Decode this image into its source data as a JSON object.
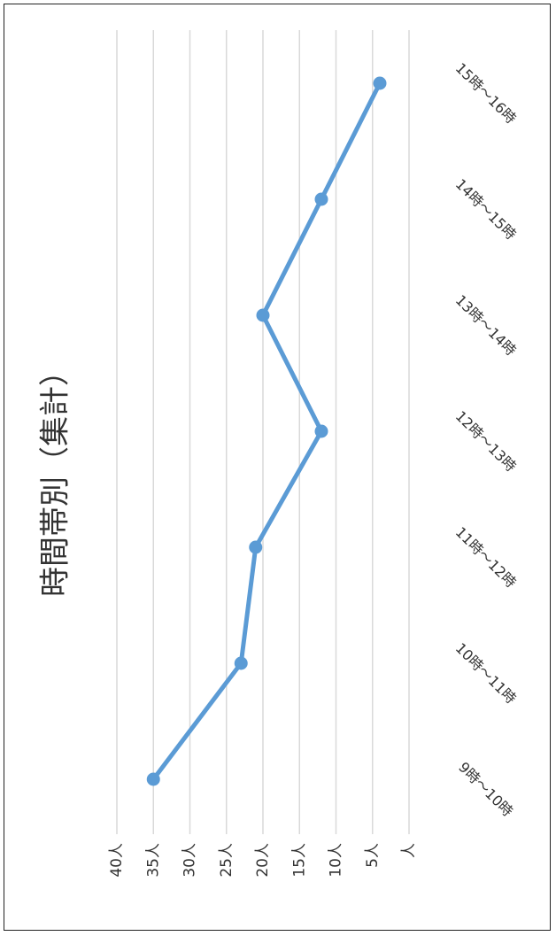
{
  "chart_data": {
    "type": "line",
    "title": "時間帯別（集計）",
    "categories": [
      "9時～10時",
      "10時～11時",
      "11時～12時",
      "12時～13時",
      "13時～14時",
      "14時～15時",
      "15時～16時"
    ],
    "series": [
      {
        "values": [
          35,
          23,
          21,
          12,
          20,
          12,
          4
        ]
      }
    ],
    "y_ticks": [
      "人",
      "5人",
      "10人",
      "15人",
      "20人",
      "25人",
      "30人",
      "35人",
      "40人"
    ],
    "ylim": [
      0,
      40
    ],
    "grid": true,
    "legend": "none",
    "orientation": "rotated-90",
    "series_color": "#5B9BD5",
    "grid_color": "#D9D9D9"
  }
}
